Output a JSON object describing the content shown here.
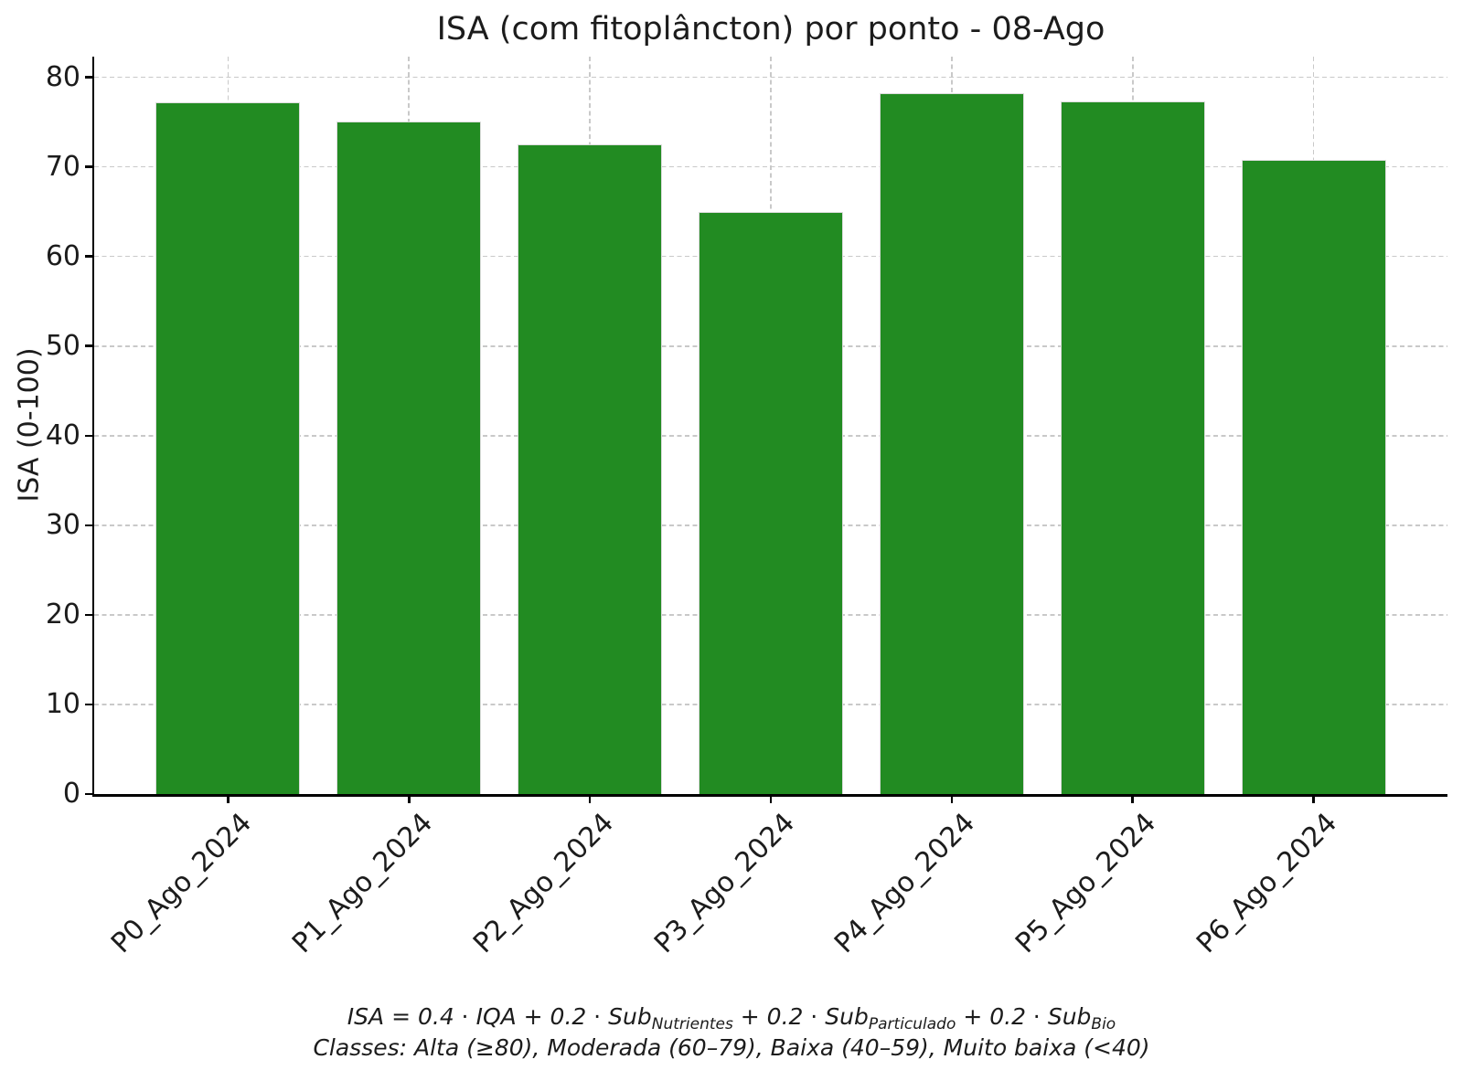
{
  "title": "ISA (com fitoplâncton) por ponto - 08-Ago",
  "chart_data": {
    "type": "bar",
    "title": "ISA (com fitoplâncton) por ponto - 08-Ago",
    "xlabel": "",
    "ylabel": "ISA (0-100)",
    "categories": [
      "P0_Ago_2024",
      "P1_Ago_2024",
      "P2_Ago_2024",
      "P3_Ago_2024",
      "P4_Ago_2024",
      "P5_Ago_2024",
      "P6_Ago_2024"
    ],
    "values": [
      77.2,
      75.1,
      72.5,
      65.0,
      78.2,
      77.3,
      70.8
    ],
    "ylim": [
      0,
      82.3
    ],
    "yticks": [
      0,
      10,
      20,
      30,
      40,
      50,
      60,
      70,
      80
    ],
    "grid": true,
    "grid_style": "dashed",
    "grid_color": "#c9c9c9",
    "bar_color": "#228B22",
    "bar_edge_color": "#dcdcdc",
    "xticklabel_rotation": 45,
    "legend": "none"
  },
  "footer": {
    "formula_segments": [
      {
        "t": "ISA = 0.4 ⋅ IQA + 0.2 ⋅ Sub",
        "sub": false
      },
      {
        "t": "Nutrientes",
        "sub": true
      },
      {
        "t": " + 0.2 ⋅ Sub",
        "sub": false
      },
      {
        "t": "Particulado",
        "sub": true
      },
      {
        "t": " + 0.2 ⋅ Sub",
        "sub": false
      },
      {
        "t": "Bio",
        "sub": true
      }
    ],
    "formula_text": "ISA = 0.4 ⋅ IQA + 0.2 ⋅ Sub_Nutrientes + 0.2 ⋅ Sub_Particulado + 0.2 ⋅ Sub_Bio",
    "classes_line": "Classes: Alta (≥80), Moderada (60–79), Baixa (40–59), Muito baixa (<40)"
  }
}
